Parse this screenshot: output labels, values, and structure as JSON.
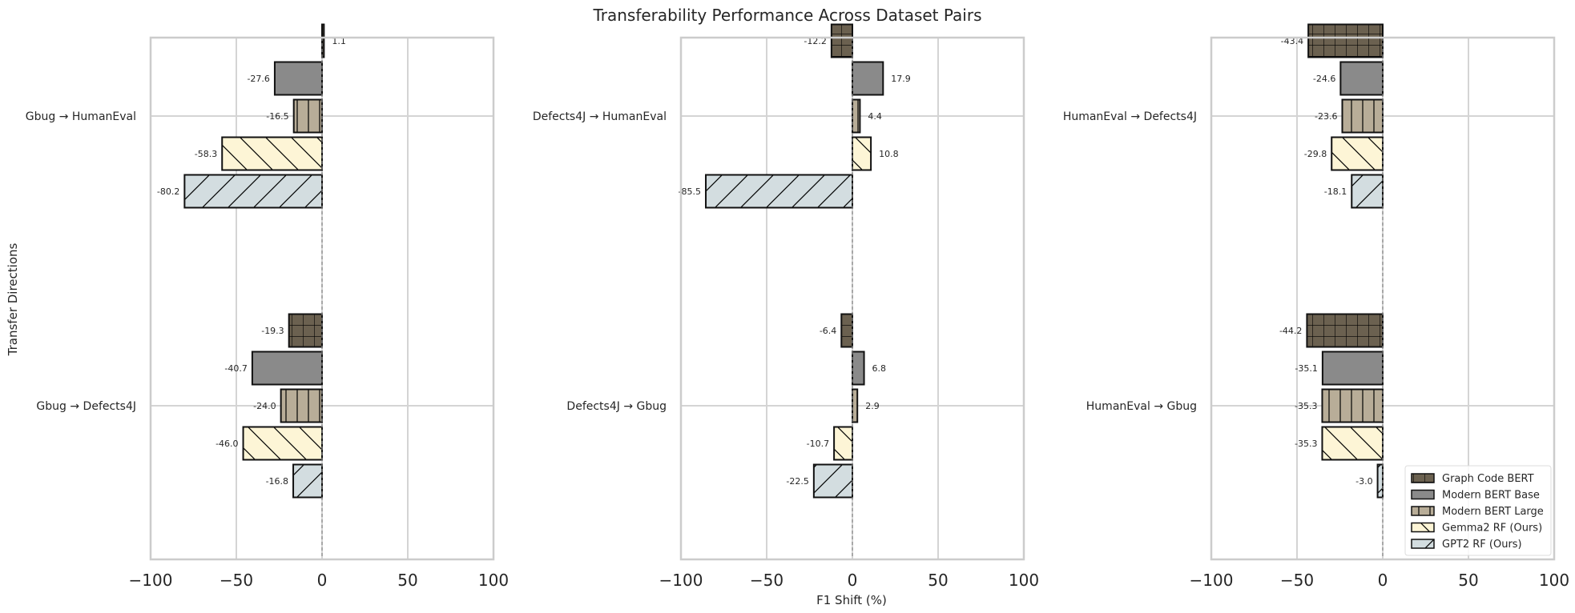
{
  "chart_data": {
    "type": "bar",
    "orientation": "horizontal",
    "title": "Transferability Performance Across Dataset Pairs",
    "xlabel": "F1 Shift (%)",
    "ylabel": "Transfer Directions",
    "xlim": [
      -100,
      100
    ],
    "xticks": [
      -100,
      -50,
      0,
      50,
      100
    ],
    "xtick_labels": [
      "−100",
      "−50",
      "0",
      "50",
      "100"
    ],
    "grid": true,
    "legend_position": "lower-right",
    "series": [
      {
        "name": "Graph Code BERT",
        "color": "#6b6150",
        "hatch": "grid"
      },
      {
        "name": "Modern BERT Base",
        "color": "#8a8a8a",
        "hatch": "none"
      },
      {
        "name": "Modern BERT Large",
        "color": "#b8ad98",
        "hatch": "vertical"
      },
      {
        "name": "Gemma2 RF (Ours)",
        "color": "#fdf5d6",
        "hatch": "backslash"
      },
      {
        "name": "GPT2 RF (Ours)",
        "color": "#d3dde0",
        "hatch": "slash"
      }
    ],
    "panels": [
      {
        "groups": [
          {
            "label": "Gbug → HumanEval",
            "values": [
              1.1,
              -27.6,
              -16.5,
              -58.3,
              -80.2
            ]
          },
          {
            "label": "Gbug → Defects4J",
            "values": [
              -19.3,
              -40.7,
              -24.0,
              -46.0,
              -16.8
            ]
          }
        ]
      },
      {
        "groups": [
          {
            "label": "Defects4J → HumanEval",
            "values": [
              -12.2,
              17.9,
              4.4,
              10.8,
              -85.5
            ]
          },
          {
            "label": "Defects4J → Gbug",
            "values": [
              -6.4,
              6.8,
              2.9,
              -10.7,
              -22.5
            ]
          }
        ]
      },
      {
        "groups": [
          {
            "label": "HumanEval → Defects4J",
            "values": [
              -43.4,
              -24.6,
              -23.6,
              -29.8,
              -18.1
            ]
          },
          {
            "label": "HumanEval → Gbug",
            "values": [
              -44.2,
              -35.1,
              -35.3,
              -35.3,
              -3.0
            ]
          }
        ]
      }
    ]
  }
}
